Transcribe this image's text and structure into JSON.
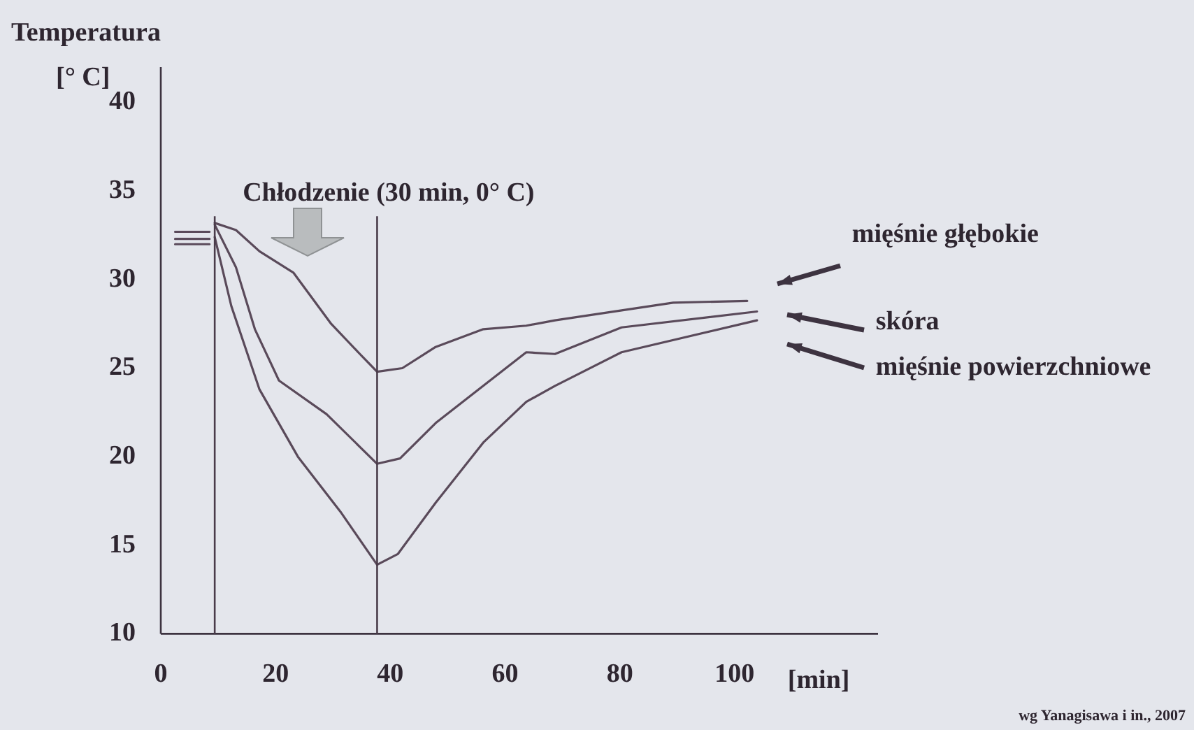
{
  "chart_data": {
    "type": "line",
    "ylabel": "Temperatura [° C]",
    "xlabel": "[min]",
    "xlim": [
      0,
      125
    ],
    "xticks": [
      0,
      20,
      40,
      60,
      80,
      100
    ],
    "ylim": [
      10,
      42
    ],
    "yticks": [
      10,
      15,
      20,
      25,
      30,
      35,
      40
    ],
    "grid": false,
    "legend": false,
    "marker": "none",
    "line_style": "solid",
    "ref_lines": [
      {
        "axis": "x",
        "value": 9.4,
        "color": "#4a3c4a"
      },
      {
        "axis": "x",
        "value": 37.7,
        "color": "#4a3c4a"
      }
    ],
    "annotations": [
      "Chłodzenie (30 min, 0° C)",
      "wg Yanagisawa i in., 2007"
    ],
    "series": [
      {
        "name": "mięśnie głębokie",
        "color": "#5a4a5a",
        "x": [
          2.5,
          8.5,
          9.0,
          9.4,
          13.1,
          17.2,
          23.1,
          29.7,
          34.7,
          37.7,
          42.1,
          47.9,
          56.2,
          63.7,
          68.7,
          89.3,
          102.2
        ],
        "values": [
          32.7,
          32.7,
          null,
          33.2,
          32.8,
          31.6,
          30.4,
          27.5,
          25.8,
          24.8,
          25.0,
          26.2,
          27.2,
          27.4,
          27.7,
          28.7,
          28.8
        ]
      },
      {
        "name": "skóra",
        "color": "#5a4a5a",
        "x": [
          2.5,
          8.5,
          9.0,
          9.4,
          13.1,
          16.4,
          20.6,
          28.9,
          37.7,
          41.7,
          47.9,
          56.2,
          63.7,
          68.7,
          80.3,
          103.9
        ],
        "values": [
          32.3,
          32.3,
          null,
          33.1,
          30.7,
          27.2,
          24.3,
          22.4,
          19.6,
          19.9,
          21.9,
          24.0,
          25.9,
          25.8,
          27.3,
          28.2
        ]
      },
      {
        "name": "mięśnie powierzchniowe",
        "color": "#5a4a5a",
        "x": [
          2.5,
          8.5,
          9.0,
          9.4,
          12.3,
          17.2,
          23.9,
          31.3,
          37.7,
          41.3,
          47.9,
          56.2,
          63.7,
          68.7,
          80.3,
          103.9
        ],
        "values": [
          32.0,
          32.0,
          null,
          32.4,
          28.5,
          23.8,
          20.0,
          16.9,
          13.9,
          14.5,
          17.4,
          20.8,
          23.1,
          24.0,
          25.9,
          27.7
        ]
      }
    ]
  }
}
